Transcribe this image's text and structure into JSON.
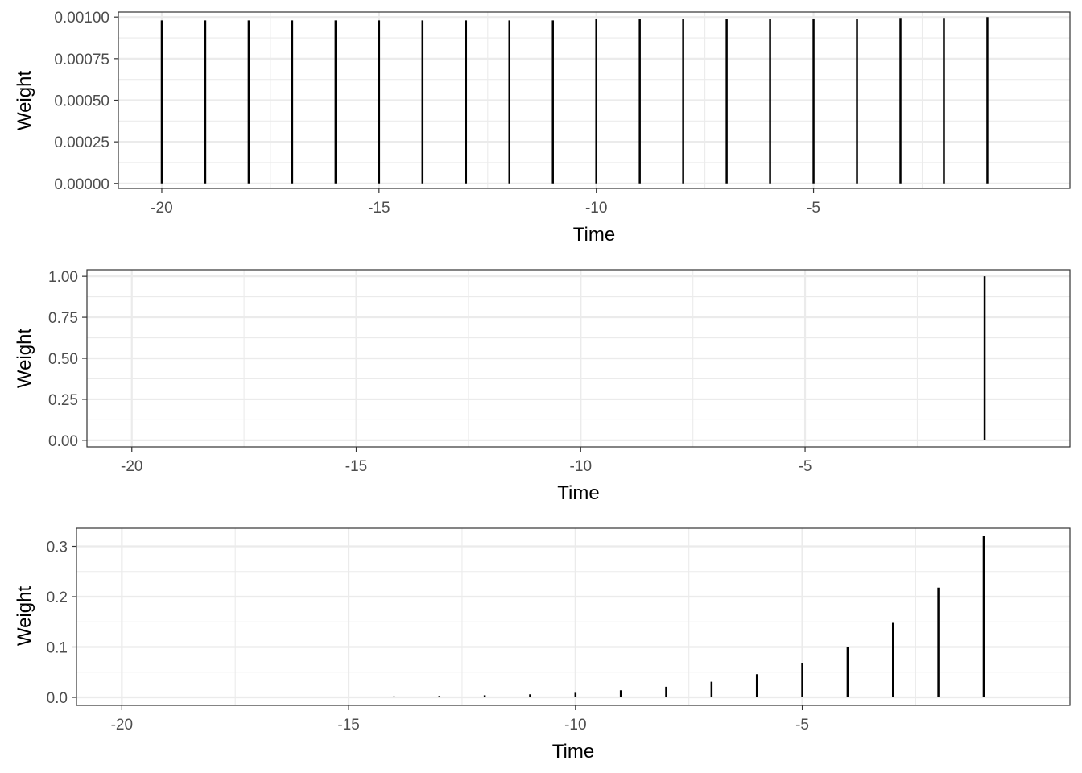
{
  "chart_data": [
    {
      "type": "bar",
      "subtype": "stem",
      "xlabel": "Time",
      "ylabel": "Weight",
      "xlim": [
        -21.0,
        0.9
      ],
      "ylim": [
        -3e-05,
        0.00103
      ],
      "x_ticks": [
        -20,
        -15,
        -10,
        -5
      ],
      "x_tick_labels": [
        "-20",
        "-15",
        "-10",
        "-5"
      ],
      "y_ticks": [
        0,
        0.00025,
        0.0005,
        0.00075,
        0.001
      ],
      "y_tick_labels": [
        "0.00000",
        "0.00025",
        "0.00050",
        "0.00075",
        "0.00100"
      ],
      "grid": true,
      "x": [
        -20,
        -19,
        -18,
        -17,
        -16,
        -15,
        -14,
        -13,
        -12,
        -11,
        -10,
        -9,
        -8,
        -7,
        -6,
        -5,
        -4,
        -3,
        -2,
        -1
      ],
      "values": [
        0.00098,
        0.00098,
        0.00098,
        0.00098,
        0.00098,
        0.00098,
        0.00098,
        0.00098,
        0.00098,
        0.00098,
        0.00099,
        0.00099,
        0.00099,
        0.00099,
        0.00099,
        0.00099,
        0.00099,
        0.000995,
        0.000995,
        0.001
      ]
    },
    {
      "type": "bar",
      "subtype": "stem",
      "xlabel": "Time",
      "ylabel": "Weight",
      "xlim": [
        -21.0,
        0.9
      ],
      "ylim": [
        -0.04,
        1.04
      ],
      "x_ticks": [
        -20,
        -15,
        -10,
        -5
      ],
      "x_tick_labels": [
        "-20",
        "-15",
        "-10",
        "-5"
      ],
      "y_ticks": [
        0,
        0.25,
        0.5,
        0.75,
        1.0
      ],
      "y_tick_labels": [
        "0.00",
        "0.25",
        "0.50",
        "0.75",
        "1.00"
      ],
      "grid": true,
      "x": [
        -20,
        -19,
        -18,
        -17,
        -16,
        -15,
        -14,
        -13,
        -12,
        -11,
        -10,
        -9,
        -8,
        -7,
        -6,
        -5,
        -4,
        -3,
        -2,
        -1
      ],
      "values": [
        0,
        0,
        0,
        0,
        0,
        0,
        0,
        0,
        0,
        0,
        0,
        0,
        0,
        0,
        0,
        0,
        0,
        0,
        0.001,
        1.0
      ]
    },
    {
      "type": "bar",
      "subtype": "stem",
      "xlabel": "Time",
      "ylabel": "Weight",
      "xlim": [
        -21.0,
        0.9
      ],
      "ylim": [
        -0.016,
        0.336
      ],
      "x_ticks": [
        -20,
        -15,
        -10,
        -5
      ],
      "x_tick_labels": [
        "-20",
        "-15",
        "-10",
        "-5"
      ],
      "y_ticks": [
        0,
        0.1,
        0.2,
        0.3
      ],
      "y_tick_labels": [
        "0.0",
        "0.1",
        "0.2",
        "0.3"
      ],
      "grid": true,
      "x": [
        -20,
        -19,
        -18,
        -17,
        -16,
        -15,
        -14,
        -13,
        -12,
        -11,
        -10,
        -9,
        -8,
        -7,
        -6,
        -5,
        -4,
        -3,
        -2,
        -1
      ],
      "values": [
        0.0002,
        0.0003,
        0.0004,
        0.0006,
        0.0009,
        0.0013,
        0.0019,
        0.0028,
        0.0041,
        0.006,
        0.009,
        0.014,
        0.021,
        0.031,
        0.046,
        0.068,
        0.1,
        0.148,
        0.218,
        0.32
      ]
    }
  ]
}
